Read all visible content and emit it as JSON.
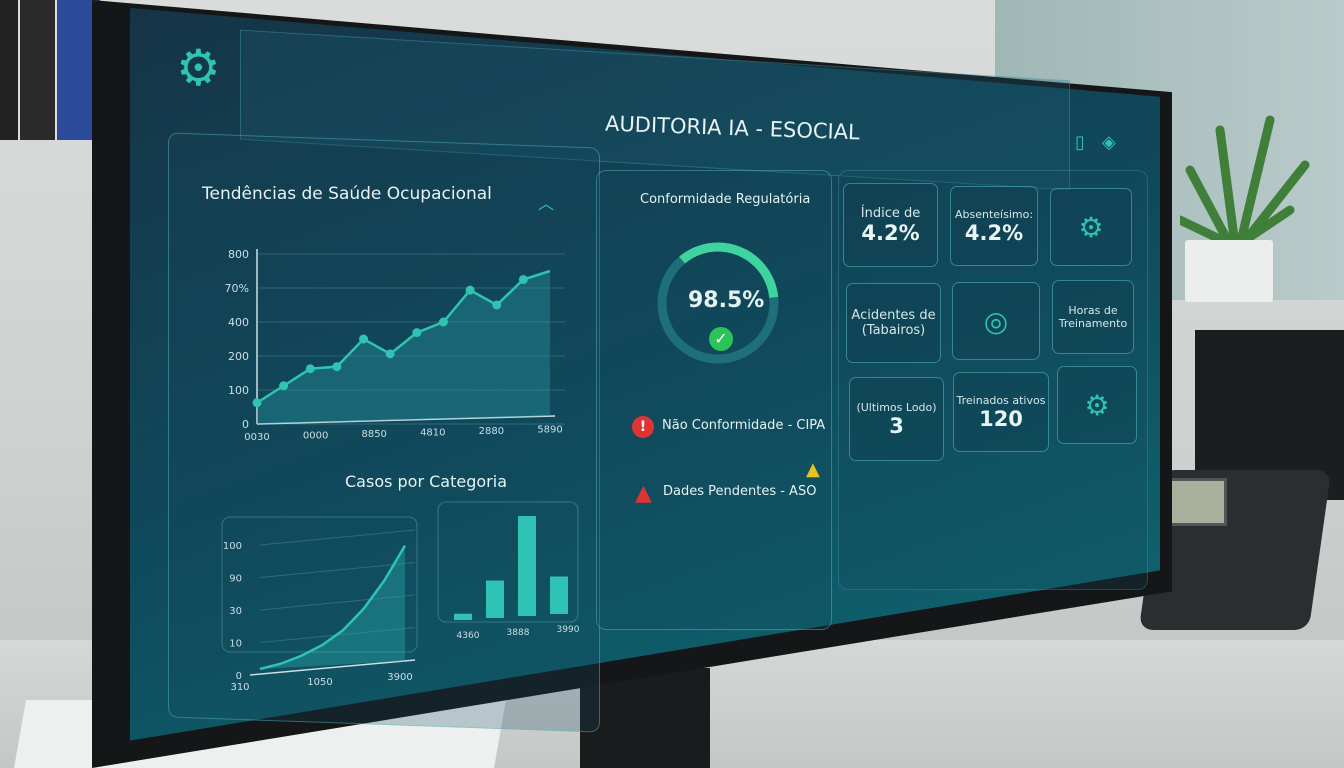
{
  "header": {
    "title": "AUDITORIA IA - ESOCIAL",
    "settings_icon": "gear-icon",
    "action_icons": [
      "clipboard-icon",
      "diamond-icon"
    ]
  },
  "trends": {
    "title": "Tendências de Saúde Ocupacional",
    "collapse_icon": "chevron-up-icon"
  },
  "categories": {
    "title": "Casos por Categoria"
  },
  "chart_data": [
    {
      "type": "line",
      "y_tick_labels": [
        "0",
        "100",
        "200",
        "400",
        "70%",
        "800"
      ],
      "x_tick_labels": [
        "0030",
        "0000",
        "8850",
        "4810",
        "2880",
        "5890"
      ],
      "values": [
        100,
        180,
        260,
        270,
        400,
        330,
        430,
        480,
        630,
        560,
        680,
        720
      ],
      "ylim": [
        0,
        800
      ],
      "grid": true,
      "fill": "area"
    },
    {
      "type": "area",
      "y_tick_labels": [
        "0",
        "10",
        "30",
        "90",
        "100"
      ],
      "x_tick_labels": [
        "310",
        "1050",
        "3900"
      ],
      "values": [
        0,
        3,
        8,
        15,
        25,
        40,
        60,
        85
      ],
      "grid": true
    },
    {
      "type": "bar",
      "x_tick_labels": [
        "4360",
        "3888",
        "3990"
      ],
      "values": [
        5,
        30,
        80,
        30
      ],
      "grid": true
    }
  ],
  "compliance": {
    "title": "Conformidade Regulatória",
    "value": "98.5%",
    "percent": 98.5,
    "check_icon": "check-circle-icon",
    "alerts": [
      {
        "icon": "error-icon",
        "text": "Não Conformidade - CIPA",
        "color": "#e03434"
      },
      {
        "icon": "warning-icon",
        "text": "Dades Pendentes - ASO",
        "color": "#e03434",
        "trail_icon": "warning-triangle-icon",
        "trail_color": "#e8c21c"
      }
    ]
  },
  "tiles": [
    {
      "label": "Índice de",
      "value": "4.2%"
    },
    {
      "label": "Absenteísimo:",
      "value": "4.2%"
    },
    {
      "icon": "gear-icon"
    },
    {
      "label": "Acidentes de (Tabairos)",
      "value": ""
    },
    {
      "icon": "target-icon"
    },
    {
      "label": "Horas de Treinamento",
      "value": ""
    },
    {
      "label": "(Ultimos Lodo)",
      "value": "3"
    },
    {
      "label": "Treinados ativos",
      "value": "120"
    },
    {
      "icon": "gear-icon"
    }
  ],
  "colors": {
    "accent": "#2fc3b3",
    "screen_bg": "#0f4a5c",
    "error": "#e03434",
    "warning": "#e8c21c"
  }
}
